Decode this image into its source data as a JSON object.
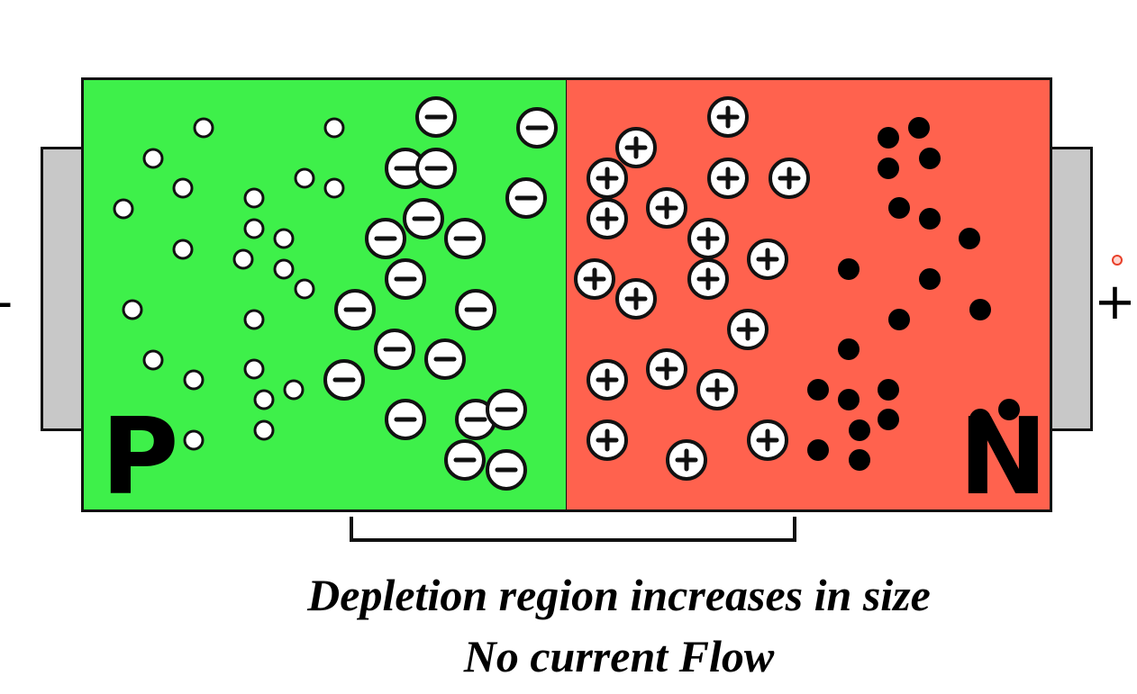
{
  "labels": {
    "p_region": "P",
    "n_region": "N",
    "negative_terminal": "-",
    "positive_terminal": "+"
  },
  "captions": {
    "line1": "Depletion region increases in size",
    "line2": "No current Flow"
  },
  "particle_symbols": {
    "negative_ion": "−",
    "positive_ion": "+"
  },
  "colors": {
    "p_region": "#3ef04a",
    "n_region": "#ff624e",
    "terminal": "#c8c8c8"
  }
}
